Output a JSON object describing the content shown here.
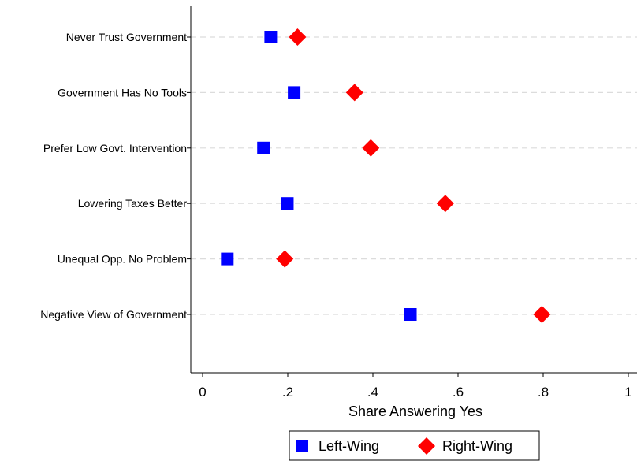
{
  "chart_data": {
    "type": "scatter",
    "orientation": "horizontal-dot-plot",
    "categories": [
      "Never Trust Government",
      "Government Has No Tools",
      "Prefer Low Govt. Intervention",
      "Lowering Taxes Better",
      "Unequal Opp. No Problem",
      "Negative View of Government"
    ],
    "series": [
      {
        "name": "Left-Wing",
        "marker": "square",
        "color": "#0000ff",
        "values": [
          0.16,
          0.215,
          0.143,
          0.199,
          0.058,
          0.488
        ]
      },
      {
        "name": "Right-Wing",
        "marker": "diamond",
        "color": "#ff0000",
        "values": [
          0.223,
          0.357,
          0.395,
          0.57,
          0.193,
          0.797
        ]
      }
    ],
    "xlabel": "Share Answering Yes",
    "xlim": [
      0,
      1
    ],
    "xticks": [
      0,
      0.2,
      0.4,
      0.6,
      0.8,
      1
    ],
    "xtick_labels": [
      "0",
      ".2",
      ".4",
      ".6",
      ".8",
      "1"
    ],
    "grid": "horizontal-dashed",
    "legend": {
      "position": "bottom",
      "entries": [
        "Left-Wing",
        "Right-Wing"
      ]
    }
  }
}
